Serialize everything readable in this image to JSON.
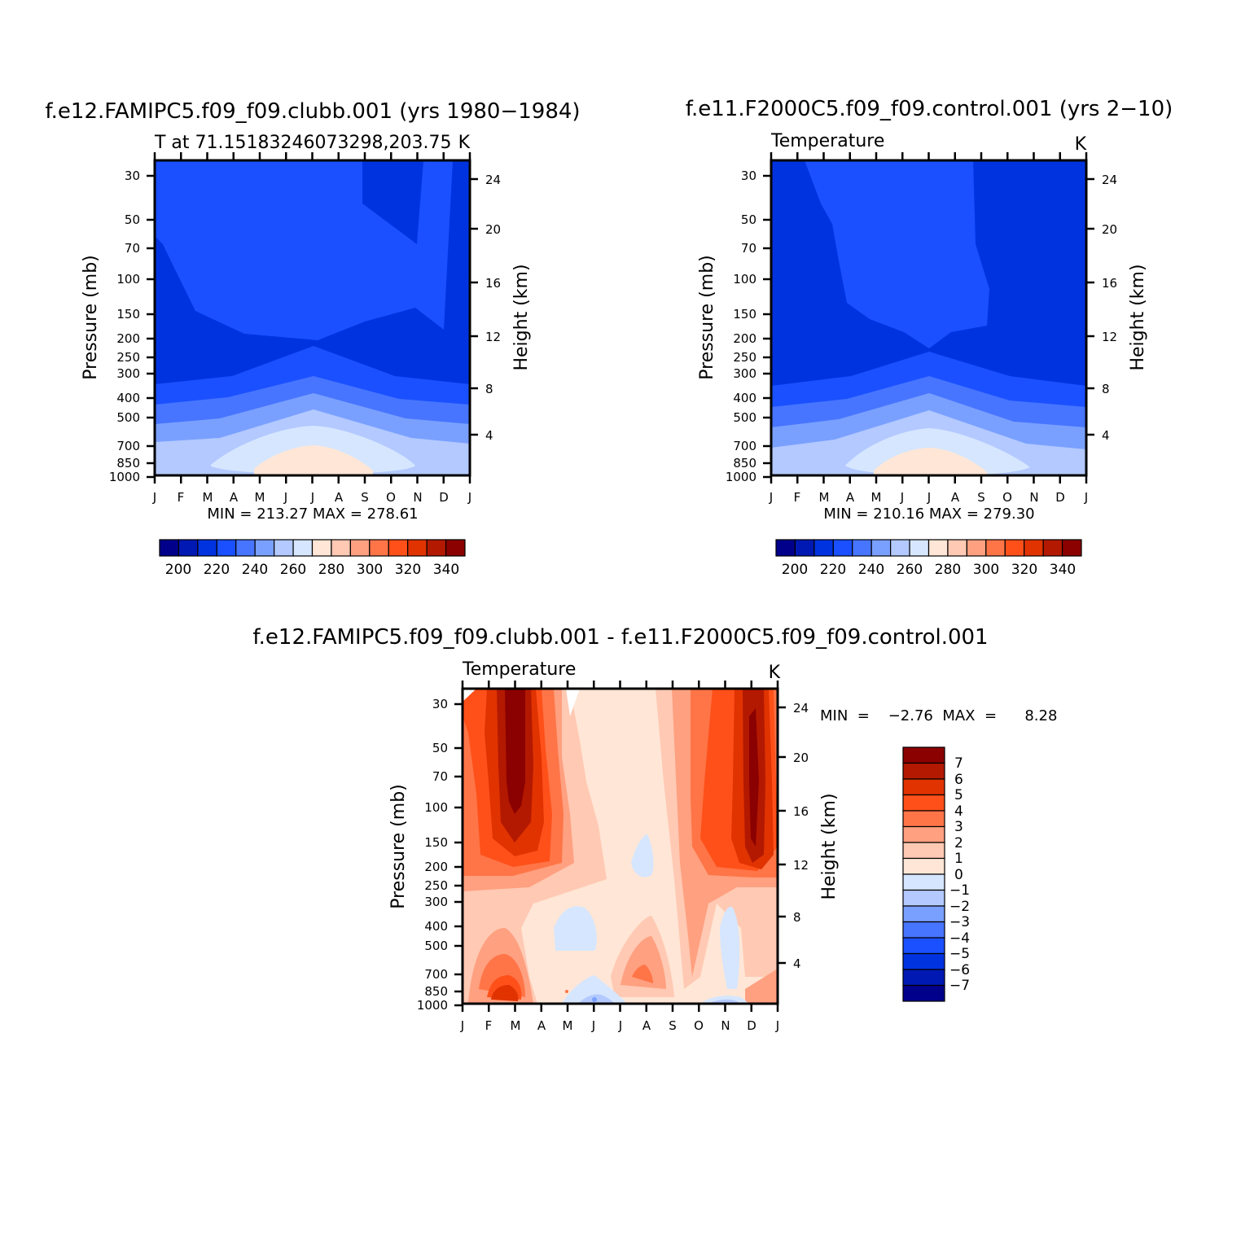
{
  "chart_data": [
    {
      "type": "heatmap",
      "title": "f.e12.FAMIPC5.f09_f09.clubb.001  (yrs  1980-1984)",
      "subtitle": "T  at  71.15183246073298,203.75",
      "units": "K",
      "ylabel": "Pressure  (mb)",
      "y2label": "Height  (km)",
      "x_ticks": [
        "J",
        "F",
        "M",
        "A",
        "M",
        "J",
        "J",
        "A",
        "S",
        "O",
        "N",
        "D",
        "J"
      ],
      "y_ticks": [
        "30",
        "50",
        "70",
        "100",
        "150",
        "200",
        "250",
        "300",
        "400",
        "500",
        "700",
        "850",
        "1000"
      ],
      "y2_ticks": [
        "24",
        "20",
        "16",
        "12",
        "8",
        "4"
      ],
      "stats": "MIN  =  213.27  MAX  =  278.61",
      "min": 213.27,
      "max": 278.61,
      "colorbar_labels": [
        "200",
        "220",
        "240",
        "260",
        "280",
        "300",
        "320",
        "340"
      ]
    },
    {
      "type": "heatmap",
      "title": "f.e11.F2000C5.f09_f09.control.001  (yrs  2-10)",
      "subtitle": "Temperature",
      "units": "K",
      "ylabel": "Pressure  (mb)",
      "y2label": "Height  (km)",
      "x_ticks": [
        "J",
        "F",
        "M",
        "A",
        "M",
        "J",
        "J",
        "A",
        "S",
        "O",
        "N",
        "D",
        "J"
      ],
      "y_ticks": [
        "30",
        "50",
        "70",
        "100",
        "150",
        "200",
        "250",
        "300",
        "400",
        "500",
        "700",
        "850",
        "1000"
      ],
      "y2_ticks": [
        "24",
        "20",
        "16",
        "12",
        "8",
        "4"
      ],
      "stats": "MIN  =  210.16  MAX  =  279.30",
      "min": 210.16,
      "max": 279.3,
      "colorbar_labels": [
        "200",
        "220",
        "240",
        "260",
        "280",
        "300",
        "320",
        "340"
      ]
    },
    {
      "type": "heatmap",
      "title": "f.e12.FAMIPC5.f09_f09.clubb.001  -  f.e11.F2000C5.f09_f09.control.001",
      "subtitle": "Temperature",
      "units": "K",
      "ylabel": "Pressure  (mb)",
      "y2label": "Height  (km)",
      "x_ticks": [
        "J",
        "F",
        "M",
        "A",
        "M",
        "J",
        "J",
        "A",
        "S",
        "O",
        "N",
        "D",
        "J"
      ],
      "y_ticks": [
        "30",
        "50",
        "70",
        "100",
        "150",
        "200",
        "250",
        "300",
        "400",
        "500",
        "700",
        "850",
        "1000"
      ],
      "y2_ticks": [
        "24",
        "20",
        "16",
        "12",
        "8",
        "4"
      ],
      "stats": "MIN  =    -2.76  MAX  =      8.28",
      "min": -2.76,
      "max": 8.28,
      "colorbar_labels": [
        "7",
        "6",
        "5",
        "4",
        "3",
        "2",
        "1",
        "0",
        "-1",
        "-2",
        "-3",
        "-4",
        "-5",
        "-6",
        "-7"
      ]
    }
  ],
  "palette": {
    "abs": [
      "#00008b",
      "#0019b3",
      "#0033e0",
      "#1a50ff",
      "#4775ff",
      "#7aa0ff",
      "#b3c9ff",
      "#d6e6ff",
      "#ffe6d6",
      "#ffc9b3",
      "#ffa080",
      "#ff7547",
      "#ff501a",
      "#e03300",
      "#b31900",
      "#8b0000"
    ],
    "diff": [
      "#8b0000",
      "#b31900",
      "#e03300",
      "#ff501a",
      "#ff7547",
      "#ffa080",
      "#ffc9b3",
      "#ffe6d6",
      "#d6e6ff",
      "#b3c9ff",
      "#7aa0ff",
      "#4775ff",
      "#1a50ff",
      "#0033e0",
      "#0019b3",
      "#00008b"
    ]
  }
}
